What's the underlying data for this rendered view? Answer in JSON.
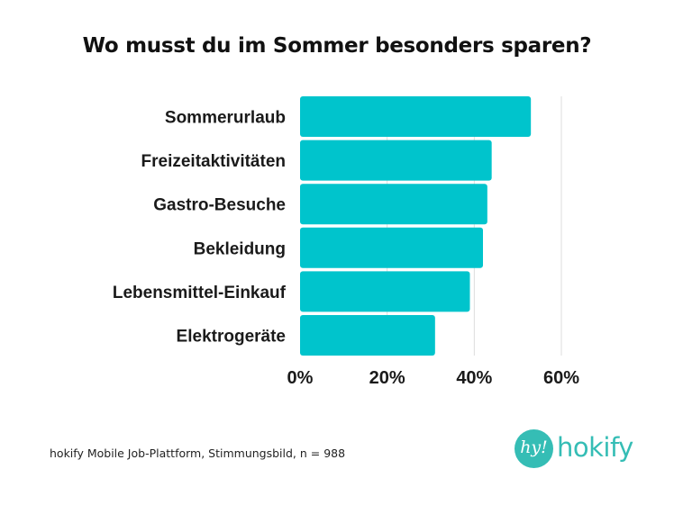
{
  "chart_data": {
    "type": "bar",
    "orientation": "horizontal",
    "title": "Wo musst du im Sommer besonders sparen?",
    "categories": [
      "Sommerurlaub",
      "Freizeitaktivitäten",
      "Gastro-Besuche",
      "Bekleidung",
      "Lebensmittel-Einkauf",
      "Elektrogeräte"
    ],
    "values": [
      53,
      44,
      43,
      42,
      39,
      31
    ],
    "unit": "%",
    "xlim": [
      0,
      60
    ],
    "xticks": [
      0,
      20,
      40,
      60
    ],
    "xtick_labels": [
      "0%",
      "20%",
      "40%",
      "60%"
    ],
    "xlabel": "",
    "ylabel": "",
    "grid": "vertical",
    "legend": "none",
    "bar_color": "#00c4cc",
    "grid_color": "#dddddd"
  },
  "footer": {
    "source": "hokify Mobile Job-Plattform, Stimmungsbild, n = 988"
  },
  "logo": {
    "mark": "hy!",
    "wordmark": "hokify",
    "color": "#35bdb5"
  }
}
